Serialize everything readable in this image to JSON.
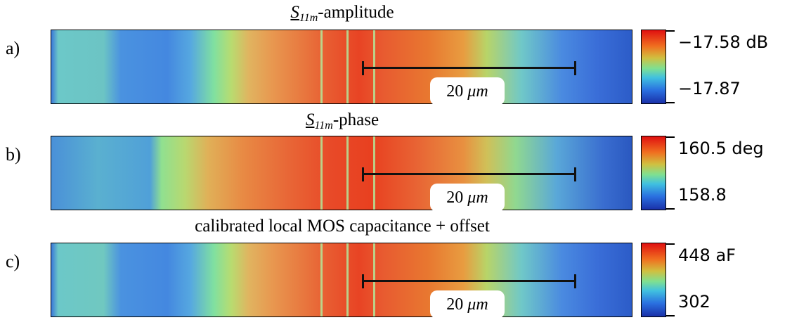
{
  "panels": [
    {
      "label": "a)",
      "title_symbol": "S",
      "title_subscript": "11m",
      "title_suffix": "-amplitude",
      "colorbar_max": "−17.58 dB",
      "colorbar_min": "−17.87",
      "scale_bar": {
        "value": "20",
        "unit": "μm"
      }
    },
    {
      "label": "b)",
      "title_symbol": "S",
      "title_subscript": "11m",
      "title_suffix": "-phase",
      "colorbar_max": "160.5 deg",
      "colorbar_min": "158.8",
      "scale_bar": {
        "value": "20",
        "unit": "μm"
      }
    },
    {
      "label": "c)",
      "title": "calibrated local MOS capacitance + offset",
      "colorbar_max": "448 aF",
      "colorbar_min": "302",
      "scale_bar": {
        "value": "20",
        "unit": "μm"
      }
    }
  ]
}
